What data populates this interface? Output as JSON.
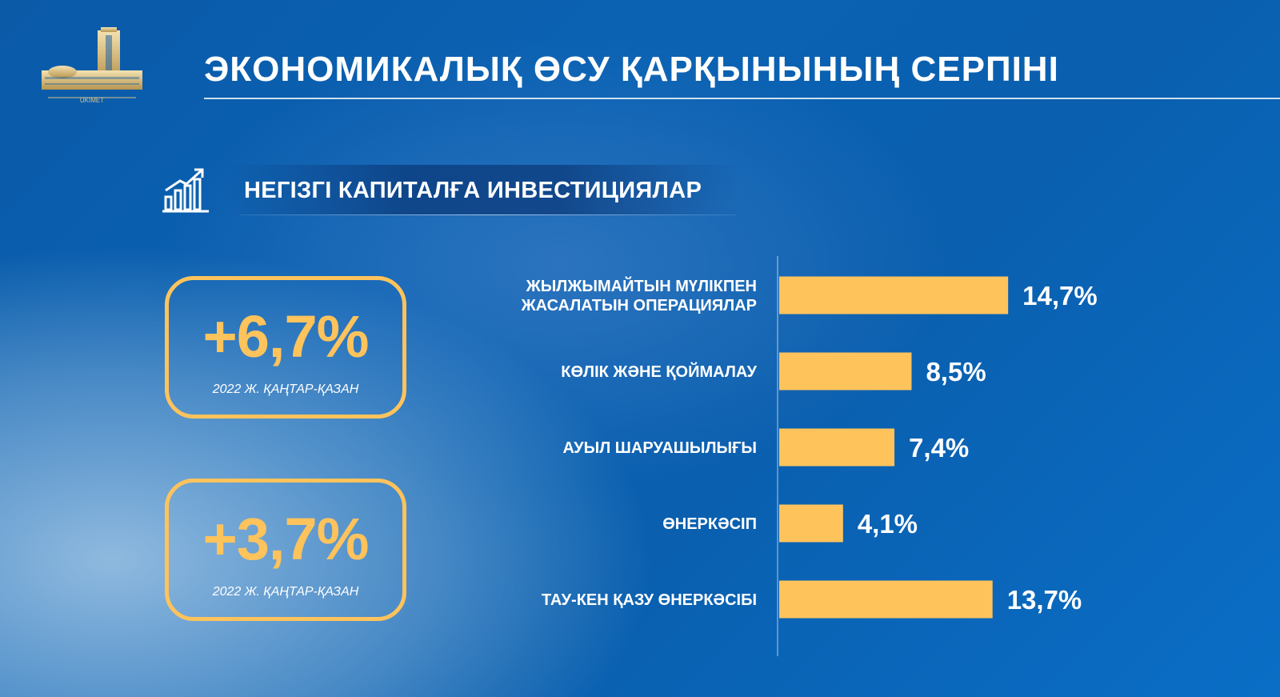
{
  "header": {
    "logo_text": "UKIMET",
    "title": "ЭКОНОМИКАЛЫҚ ӨСУ ҚАРҚЫНЫНЫҢ СЕРПІНІ"
  },
  "section": {
    "icon": "bar-chart-growth-icon",
    "title": "НЕГІЗГІ КАПИТАЛҒА ИНВЕСТИЦИЯЛАР"
  },
  "kpis": [
    {
      "value": "+6,7%",
      "note": "2022 Ж. ҚАҢТАР-ҚАЗАН"
    },
    {
      "value": "+3,7%",
      "note": "2022 Ж. ҚАҢТАР-ҚАЗАН"
    }
  ],
  "colors": {
    "accent": "#ffc35c",
    "background": "#0b62b3",
    "text": "#ffffff"
  },
  "chart_data": {
    "type": "bar",
    "orientation": "horizontal",
    "categories": [
      [
        "ЖЫЛЖЫМАЙТЫН МҮЛІКПЕН",
        "ЖАСАЛАТЫН ОПЕРАЦИЯЛАР"
      ],
      [
        "КӨЛІК ЖӘНЕ ҚОЙМАЛАУ"
      ],
      [
        "АУЫЛ ШАРУАШЫЛЫҒЫ"
      ],
      [
        "ӨНЕРКӘСІП"
      ],
      [
        "ТАУ-КЕН ҚАЗУ ӨНЕРКӘСІБІ"
      ]
    ],
    "values": [
      14.7,
      8.5,
      7.4,
      4.1,
      13.7
    ],
    "value_labels": [
      "14,7%",
      "8,5%",
      "7,4%",
      "4,1%",
      "13,7%"
    ],
    "xlim": [
      0,
      15
    ],
    "grid": false,
    "legend": "none"
  }
}
